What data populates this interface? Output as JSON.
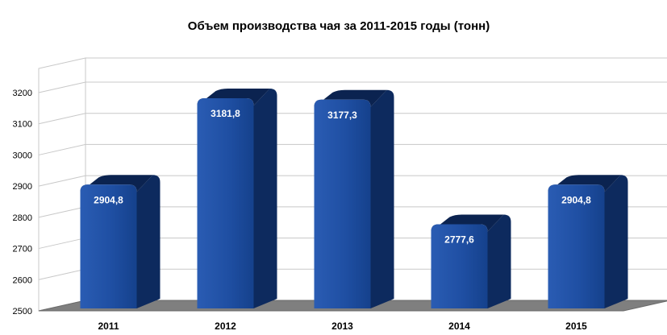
{
  "chart_data": {
    "type": "bar",
    "title": "Объем производства чая за 2011-2015 годы (тонн)",
    "categories": [
      "2011",
      "2012",
      "2013",
      "2014",
      "2015"
    ],
    "values": [
      2904.8,
      3181.8,
      3177.3,
      2777.6,
      2904.8
    ],
    "data_labels": [
      "2904,8",
      "3181,8",
      "3177,3",
      "2777,6",
      "2904,8"
    ],
    "y_ticks": [
      "2500",
      "2600",
      "2700",
      "2800",
      "2900",
      "3000",
      "3100",
      "3200"
    ],
    "ylim": [
      2500,
      3200
    ],
    "grid": true,
    "legend": "none",
    "style": "3d-column"
  },
  "colors": {
    "bar_front": "#1c4a9c",
    "bar_side": "#0d2a5e",
    "bar_top": "#0b2350",
    "floor": "#7f7f7f",
    "grid": "#c8c8c8"
  }
}
